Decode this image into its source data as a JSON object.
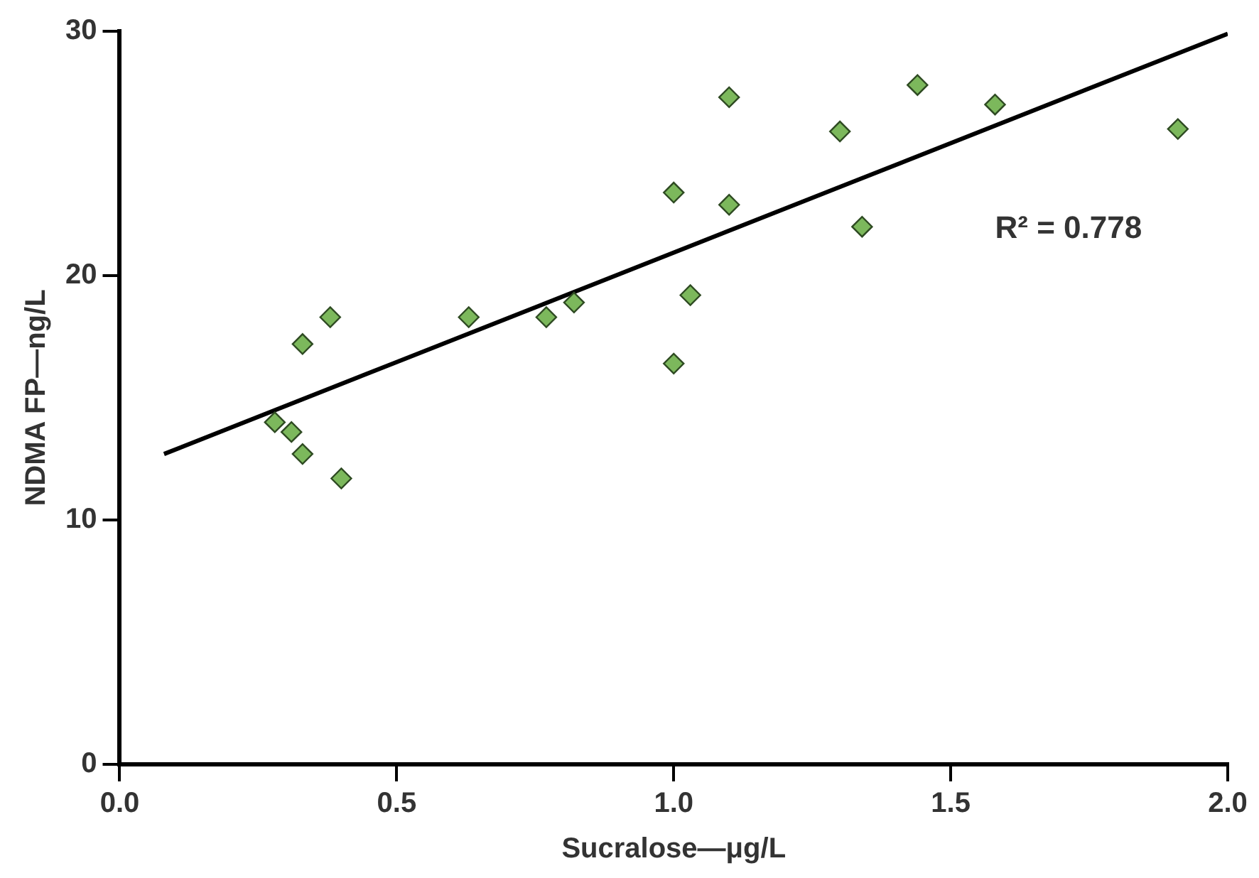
{
  "chart_data": {
    "type": "scatter",
    "xlabel": "Sucralose—μg/L",
    "ylabel": "NDMA FP—ng/L",
    "xlim": [
      0,
      2
    ],
    "xticks": [
      {
        "value": 0,
        "label": "0.0"
      },
      {
        "value": 0.5,
        "label": "0.5"
      },
      {
        "value": 1,
        "label": "1.0"
      },
      {
        "value": 1.5,
        "label": "1.5"
      },
      {
        "value": 2,
        "label": "2.0"
      }
    ],
    "ylim": [
      0,
      30
    ],
    "yticks": [
      0,
      10,
      20,
      30
    ],
    "grid": false,
    "legend": false,
    "marker": "diamond",
    "annotations": [
      "R² = 0.778"
    ],
    "series": [
      {
        "color": "#7cb85c",
        "x": [
          0.28,
          0.31,
          0.33,
          0.4,
          0.33,
          0.38,
          0.63,
          0.77,
          0.82,
          1.0,
          1.0,
          1.03,
          1.1,
          1.1,
          1.3,
          1.34,
          1.44,
          1.58,
          1.91
        ],
        "values": [
          14.0,
          13.6,
          12.7,
          11.7,
          17.2,
          18.3,
          18.3,
          18.3,
          18.9,
          16.4,
          23.4,
          19.2,
          27.3,
          22.9,
          25.9,
          22.0,
          27.8,
          27.0,
          26.0
        ]
      },
      {
        "type": "line",
        "color": "#000000",
        "x": [
          0.08,
          2.0
        ],
        "values": [
          12.7,
          29.9
        ],
        "marker": "none",
        "line_style": "solid"
      }
    ]
  }
}
